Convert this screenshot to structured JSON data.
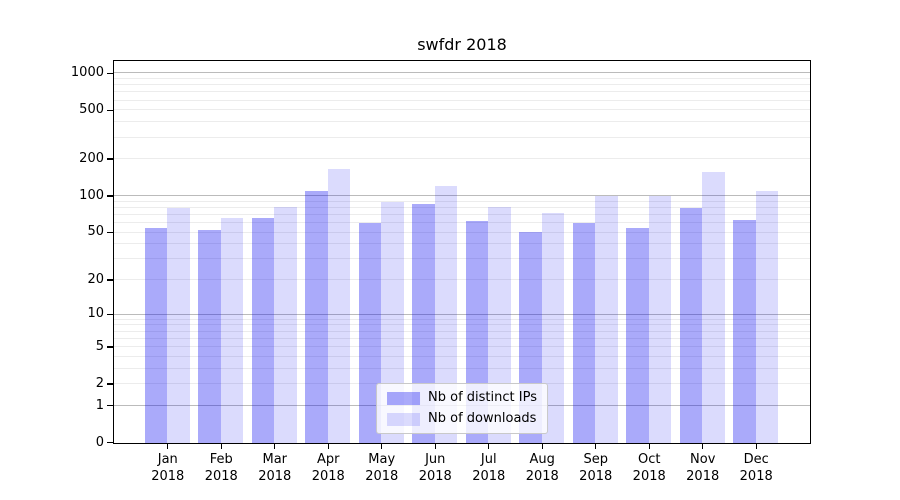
{
  "chart_data": {
    "type": "bar",
    "title": "swfdr 2018",
    "categories": [
      "Jan 2018",
      "Feb 2018",
      "Mar 2018",
      "Apr 2018",
      "May 2018",
      "Jun 2018",
      "Jul 2018",
      "Aug 2018",
      "Sep 2018",
      "Oct 2018",
      "Nov 2018",
      "Dec 2018"
    ],
    "series": [
      {
        "name": "Nb of distinct IPs",
        "color": "rgba(5,5,240,0.34)",
        "values": [
          55,
          53,
          66,
          110,
          60,
          86,
          63,
          51,
          60,
          55,
          80,
          64
        ]
      },
      {
        "name": "Nb of downloads",
        "color": "rgba(5,5,240,0.145)",
        "values": [
          80,
          66,
          81,
          166,
          89,
          121,
          82,
          73,
          100,
          100,
          158,
          111
        ]
      }
    ],
    "xlabel": "",
    "ylabel": "",
    "yscale": "log1p",
    "ylim": [
      0,
      1250
    ],
    "ytick_labels": [
      0,
      1,
      2,
      5,
      10,
      20,
      50,
      100,
      200,
      500,
      1000
    ],
    "major_grid_values": [
      1,
      10,
      100,
      1000
    ],
    "minor_grid_values": [
      2,
      3,
      4,
      5,
      6,
      7,
      8,
      9,
      20,
      30,
      40,
      50,
      60,
      70,
      80,
      90,
      200,
      300,
      400,
      500,
      600,
      700,
      800,
      900
    ],
    "grid": true,
    "legend_position": "lower center",
    "colors": {
      "bar_distinct_ips": "rgba(5,5,240,0.34)",
      "bar_downloads": "rgba(5,5,240,0.145)",
      "major_grid": "#bbbbbb",
      "minor_grid": "#ececec",
      "axis": "#000000",
      "background": "#ffffff"
    }
  }
}
